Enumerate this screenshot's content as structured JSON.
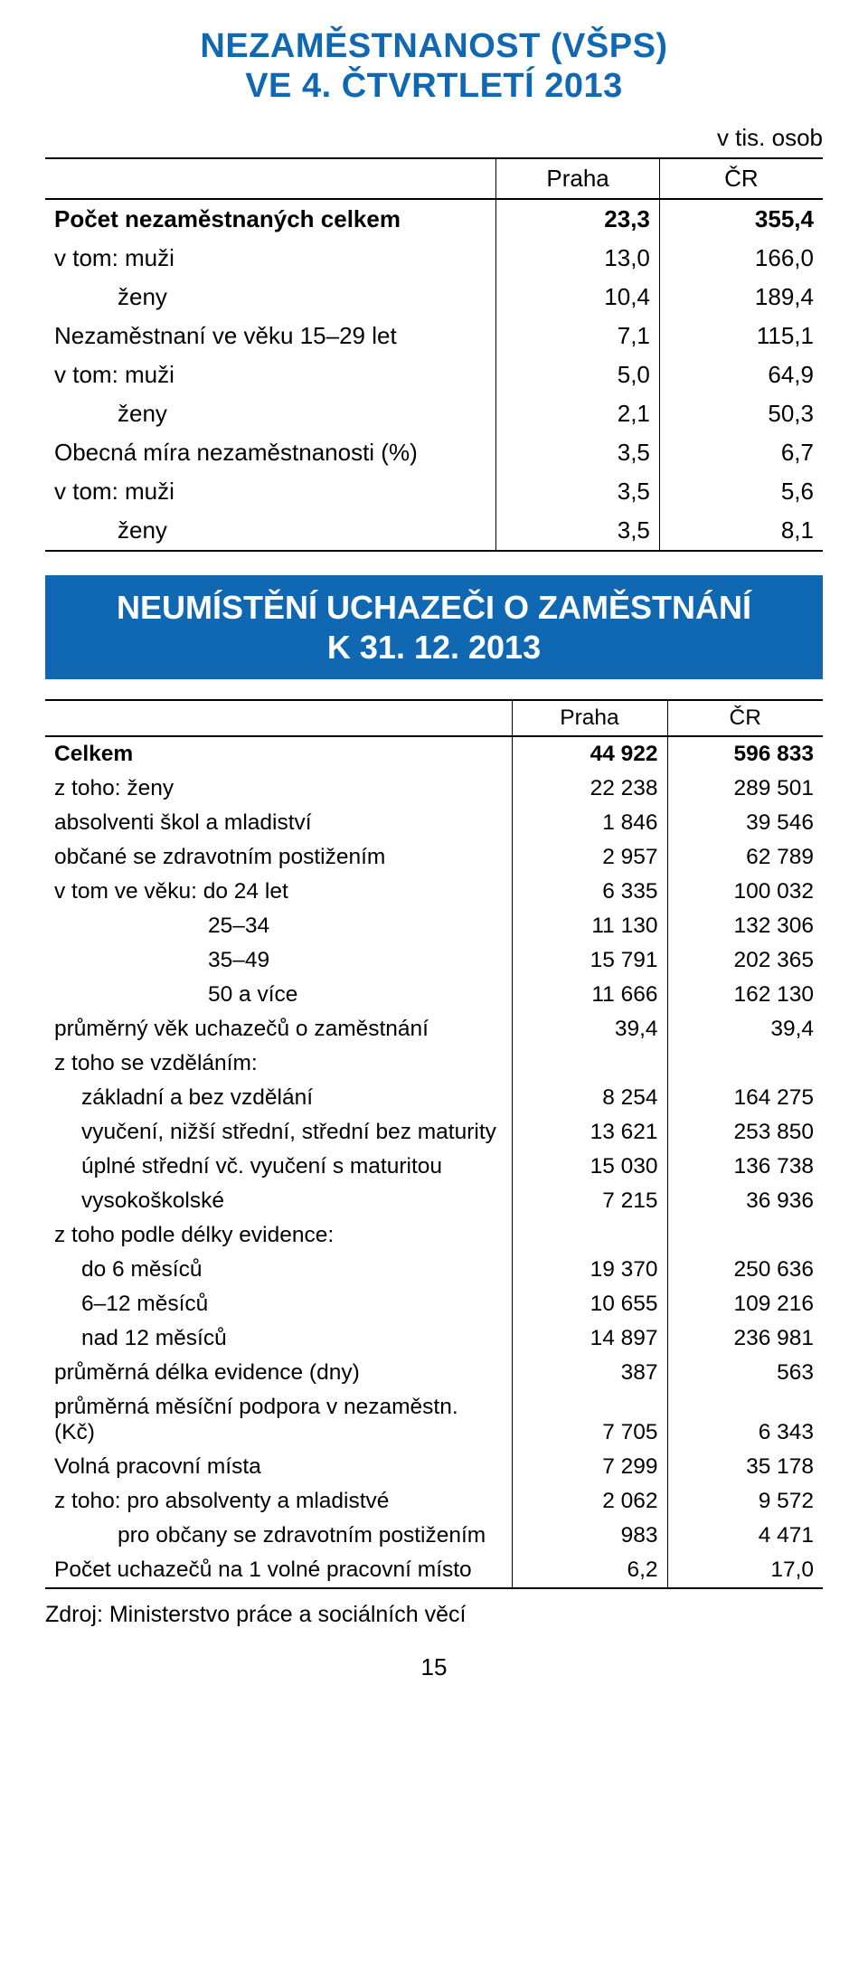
{
  "page": {
    "title_line1": "NEZAMĚSTNANOST (VŠPS)",
    "title_line2": "VE 4. ČTVRTLETÍ 2013",
    "unit_label": "v tis. osob",
    "col_praha": "Praha",
    "col_cr": "ČR",
    "banner_line1": "NEUMÍSTĚNÍ UCHAZEČI O ZAMĚSTNÁNÍ",
    "banner_line2": "K 31. 12. 2013",
    "source": "Zdroj: Ministerstvo práce a sociálních věcí",
    "page_number": "15"
  },
  "table1": {
    "rows": [
      {
        "label": "Počet nezaměstnaných celkem",
        "praha": "23,3",
        "cr": "355,4",
        "bold": true,
        "indent": 0
      },
      {
        "label": "v tom: muži",
        "praha": "13,0",
        "cr": "166,0",
        "bold": false,
        "indent": 0
      },
      {
        "label": "ženy",
        "praha": "10,4",
        "cr": "189,4",
        "bold": false,
        "indent": 2
      },
      {
        "label": "Nezaměstnaní ve věku 15–29 let",
        "praha": "7,1",
        "cr": "115,1",
        "bold": false,
        "indent": 0
      },
      {
        "label": "v tom: muži",
        "praha": "5,0",
        "cr": "64,9",
        "bold": false,
        "indent": 0
      },
      {
        "label": "ženy",
        "praha": "2,1",
        "cr": "50,3",
        "bold": false,
        "indent": 2
      },
      {
        "label": "Obecná míra nezaměstnanosti (%)",
        "praha": "3,5",
        "cr": "6,7",
        "bold": false,
        "indent": 0
      },
      {
        "label": "v tom: muži",
        "praha": "3,5",
        "cr": "5,6",
        "bold": false,
        "indent": 0
      },
      {
        "label": "ženy",
        "praha": "3,5",
        "cr": "8,1",
        "bold": false,
        "indent": 2
      }
    ]
  },
  "table2": {
    "rows": [
      {
        "label": "Celkem",
        "praha": "44 922",
        "cr": "596 833",
        "bold": true,
        "indent": 0
      },
      {
        "label": "z toho: ženy",
        "praha": "22 238",
        "cr": "289 501",
        "bold": false,
        "indent": 0
      },
      {
        "label": "absolventi škol a mladiství",
        "praha": "1 846",
        "cr": "39 546",
        "bold": false,
        "indent": 0
      },
      {
        "label": "občané se zdravotním postižením",
        "praha": "2 957",
        "cr": "62 789",
        "bold": false,
        "indent": 0
      },
      {
        "label": "v tom ve věku: do 24 let",
        "praha": "6 335",
        "cr": "100 032",
        "bold": false,
        "indent": 0
      },
      {
        "label": "25–34",
        "praha": "11 130",
        "cr": "132 306",
        "bold": false,
        "indent": 3
      },
      {
        "label": "35–49",
        "praha": "15 791",
        "cr": "202 365",
        "bold": false,
        "indent": 3
      },
      {
        "label": "50 a více",
        "praha": "11 666",
        "cr": "162 130",
        "bold": false,
        "indent": 3
      },
      {
        "label": "průměrný věk uchazečů o zaměstnání",
        "praha": "39,4",
        "cr": "39,4",
        "bold": false,
        "indent": 0
      },
      {
        "label": "z toho se vzděláním:",
        "praha": "",
        "cr": "",
        "bold": false,
        "indent": 0
      },
      {
        "label": "základní a bez vzdělání",
        "praha": "8 254",
        "cr": "164 275",
        "bold": false,
        "indent": 1
      },
      {
        "label": "vyučení, nižší střední, střední bez maturity",
        "praha": "13 621",
        "cr": "253 850",
        "bold": false,
        "indent": 1
      },
      {
        "label": "úplné střední vč. vyučení s maturitou",
        "praha": "15 030",
        "cr": "136 738",
        "bold": false,
        "indent": 1
      },
      {
        "label": "vysokoškolské",
        "praha": "7 215",
        "cr": "36 936",
        "bold": false,
        "indent": 1
      },
      {
        "label": "z toho podle délky evidence:",
        "praha": "",
        "cr": "",
        "bold": false,
        "indent": 0
      },
      {
        "label": "do 6 měsíců",
        "praha": "19 370",
        "cr": "250 636",
        "bold": false,
        "indent": 1
      },
      {
        "label": "6–12 měsíců",
        "praha": "10 655",
        "cr": "109 216",
        "bold": false,
        "indent": 1
      },
      {
        "label": "nad 12 měsíců",
        "praha": "14 897",
        "cr": "236 981",
        "bold": false,
        "indent": 1
      },
      {
        "label": "průměrná délka evidence (dny)",
        "praha": "387",
        "cr": "563",
        "bold": false,
        "indent": 0
      },
      {
        "label": "průměrná měsíční podpora v nezaměstn. (Kč)",
        "praha": "7 705",
        "cr": "6 343",
        "bold": false,
        "indent": 0
      },
      {
        "label": "Volná pracovní místa",
        "praha": "7 299",
        "cr": "35 178",
        "bold": false,
        "indent": 0
      },
      {
        "label": "z toho: pro absolventy a mladistvé",
        "praha": "2 062",
        "cr": "9 572",
        "bold": false,
        "indent": 0
      },
      {
        "label": "pro občany se zdravotním postižením",
        "praha": "983",
        "cr": "4 471",
        "bold": false,
        "indent": 2
      },
      {
        "label": "Počet uchazečů na 1 volné pracovní místo",
        "praha": "6,2",
        "cr": "17,0",
        "bold": false,
        "indent": 0
      }
    ]
  },
  "style": {
    "accent_color": "#1068b3",
    "text_color": "#000000",
    "background_color": "#ffffff",
    "title_fontsize": 38,
    "body_fontsize_t1": 26,
    "body_fontsize_t2": 24.5,
    "banner_fontsize": 36
  }
}
